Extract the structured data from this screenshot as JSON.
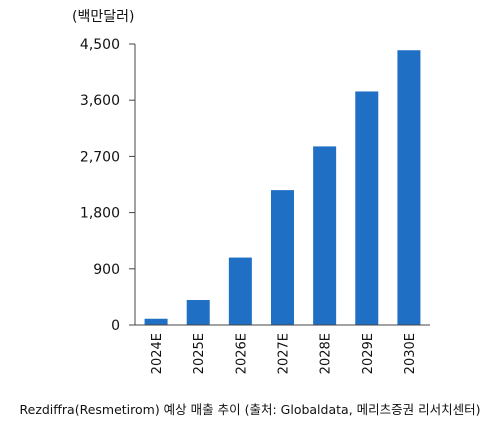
{
  "chart_data": {
    "type": "bar",
    "unit_label": "(백만달러)",
    "categories": [
      "2024E",
      "2025E",
      "2026E",
      "2027E",
      "2028E",
      "2029E",
      "2030E"
    ],
    "values": [
      100,
      400,
      1080,
      2160,
      2860,
      3740,
      4400
    ],
    "ylim": [
      0,
      4500
    ],
    "yticks": [
      "0",
      "900",
      "1,800",
      "2,700",
      "3,600",
      "4,500"
    ],
    "ytick_values": [
      0,
      900,
      1800,
      2700,
      3600,
      4500
    ],
    "grid": false,
    "legend": "none",
    "bar_color": "#1f6fc5"
  },
  "caption": "Rezdiffra(Resmetirom) 예상 매출 추이 (출처: Globaldata, 메리츠증권 리서치센터)"
}
